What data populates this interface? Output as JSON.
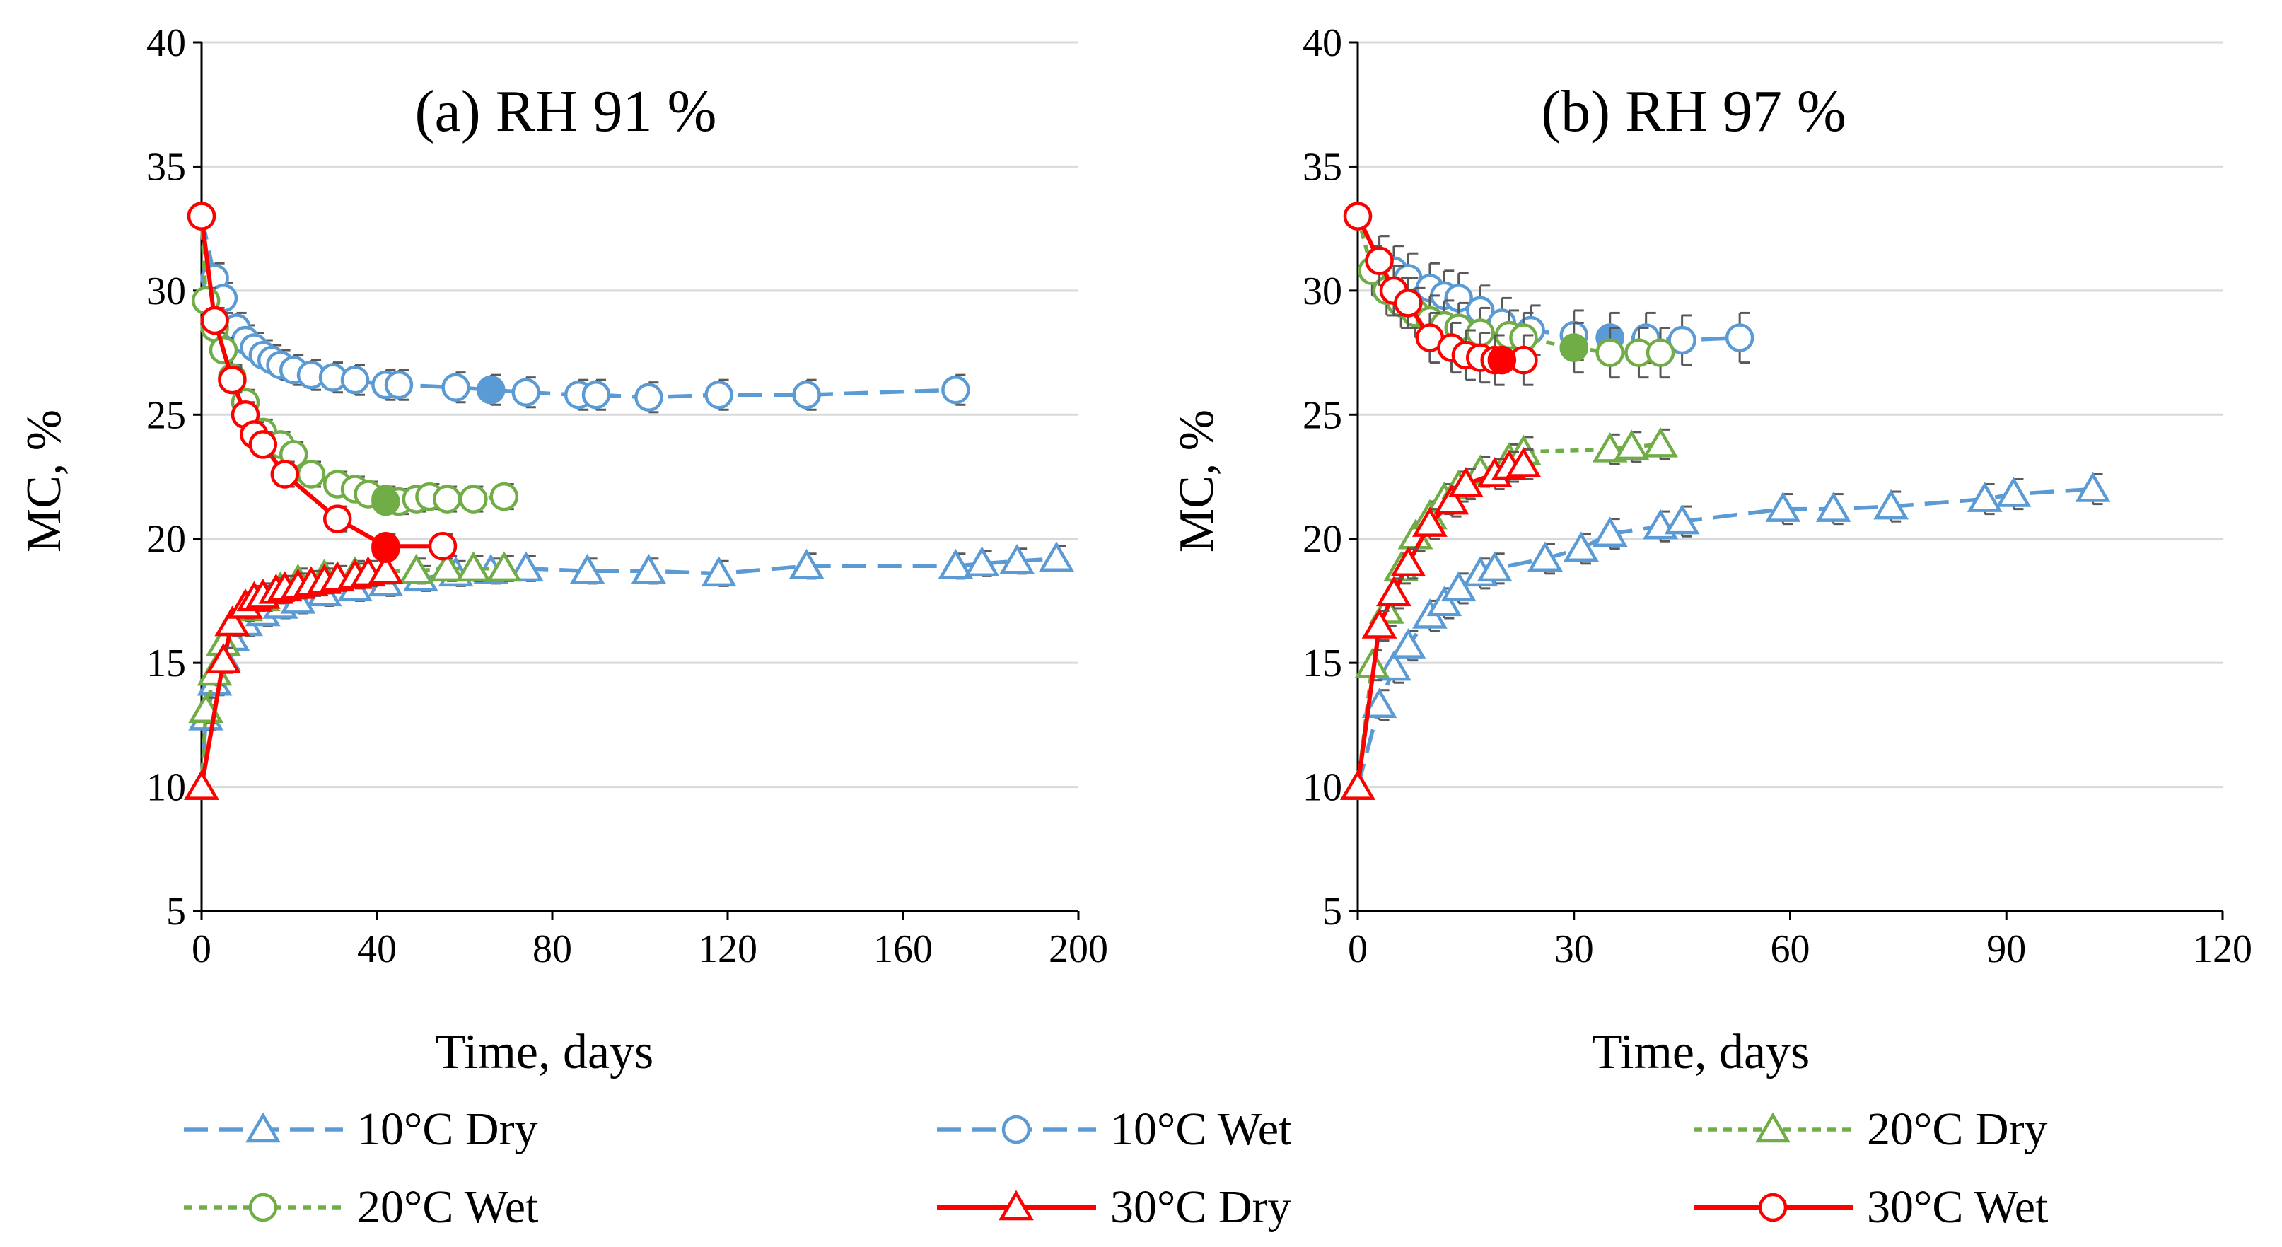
{
  "colors": {
    "blue": "#5B9BD5",
    "green": "#70AD47",
    "red": "#FF0000",
    "grid": "#D9D9D9",
    "errbar": "#595959"
  },
  "legend": [
    {
      "label": "10°C Dry",
      "color": "#5B9BD5",
      "marker": "triangle",
      "dash": "long"
    },
    {
      "label": "10°C Wet",
      "color": "#5B9BD5",
      "marker": "circle",
      "dash": "long"
    },
    {
      "label": "20°C Dry",
      "color": "#70AD47",
      "marker": "triangle",
      "dash": "short"
    },
    {
      "label": "20°C Wet",
      "color": "#70AD47",
      "marker": "circle",
      "dash": "short"
    },
    {
      "label": "30°C Dry",
      "color": "#FF0000",
      "marker": "triangle",
      "dash": "solid"
    },
    {
      "label": "30°C Wet",
      "color": "#FF0000",
      "marker": "circle",
      "dash": "solid"
    }
  ],
  "chart_data": [
    {
      "type": "line",
      "title": "(a) RH 91 %",
      "xlabel": "Time, days",
      "ylabel": "MC, %",
      "xlim": [
        0,
        200
      ],
      "ylim": [
        5,
        40
      ],
      "xticks": [
        0,
        40,
        80,
        120,
        160,
        200
      ],
      "yticks": [
        5,
        10,
        15,
        20,
        25,
        30,
        35,
        40
      ],
      "grid": "horizontal",
      "series": [
        {
          "name": "10°C Dry",
          "x": [
            0,
            1,
            3,
            5,
            7,
            10,
            14,
            18,
            22,
            28,
            35,
            42,
            50,
            58,
            66,
            74,
            88,
            102,
            118,
            138,
            172,
            178,
            186,
            195
          ],
          "y": [
            10,
            12.8,
            14.2,
            15.2,
            16.0,
            16.6,
            17.0,
            17.3,
            17.5,
            17.8,
            18.0,
            18.2,
            18.4,
            18.6,
            18.7,
            18.8,
            18.7,
            18.7,
            18.6,
            18.9,
            18.9,
            19.0,
            19.1,
            19.2
          ],
          "err": 0.5
        },
        {
          "name": "10°C Wet",
          "x": [
            0,
            3,
            5,
            8,
            10,
            12,
            14,
            16,
            18,
            21,
            25,
            30,
            35,
            42,
            45,
            58,
            66,
            74,
            86,
            90,
            102,
            118,
            138,
            172
          ],
          "y": [
            33,
            30.5,
            29.7,
            28.5,
            28.0,
            27.7,
            27.4,
            27.2,
            27.0,
            26.8,
            26.6,
            26.5,
            26.4,
            26.2,
            26.2,
            26.1,
            26.0,
            25.9,
            25.8,
            25.8,
            25.7,
            25.8,
            25.8,
            26.0
          ],
          "err": 0.6,
          "eq": {
            "x": 66,
            "y": 26.0
          }
        },
        {
          "name": "20°C Dry",
          "x": [
            0,
            1,
            3,
            5,
            7,
            10,
            14,
            18,
            22,
            28,
            35,
            42,
            49,
            56,
            62,
            69
          ],
          "y": [
            10,
            13.1,
            14.6,
            15.8,
            16.6,
            17.2,
            17.6,
            18.0,
            18.3,
            18.5,
            18.6,
            18.7,
            18.7,
            18.8,
            18.8,
            18.8
          ],
          "err": 0.5
        },
        {
          "name": "20°C Wet",
          "x": [
            0,
            1,
            3,
            5,
            7,
            10,
            14,
            18,
            21,
            25,
            31,
            35,
            38,
            42,
            45,
            49,
            52,
            56,
            62,
            69
          ],
          "y": [
            33,
            29.6,
            28.5,
            27.6,
            26.5,
            25.5,
            24.3,
            23.8,
            23.4,
            22.6,
            22.2,
            22.0,
            21.8,
            21.6,
            21.5,
            21.6,
            21.7,
            21.6,
            21.6,
            21.7
          ],
          "err": 0.5,
          "eq": {
            "x": 42,
            "y": 21.5
          }
        },
        {
          "name": "30°C Dry",
          "x": [
            0,
            5,
            7,
            10,
            12,
            14,
            17,
            19,
            22,
            25,
            28,
            31,
            35,
            38,
            42
          ],
          "y": [
            10,
            15.1,
            16.6,
            17.3,
            17.6,
            17.7,
            17.9,
            18.0,
            18.1,
            18.2,
            18.3,
            18.4,
            18.5,
            18.6,
            18.7
          ],
          "err": 0.5
        },
        {
          "name": "30°C Wet",
          "x": [
            0,
            3,
            7,
            10,
            12,
            14,
            19,
            31,
            42,
            55
          ],
          "y": [
            33,
            28.8,
            26.4,
            25.0,
            24.2,
            23.8,
            22.6,
            20.8,
            19.7,
            19.7
          ],
          "err": 0.5,
          "eq": {
            "x": 42,
            "y": 19.6
          }
        }
      ]
    },
    {
      "type": "line",
      "title": "(b) RH 97 %",
      "xlabel": "Time, days",
      "ylabel": "MC, %",
      "xlim": [
        0,
        120
      ],
      "ylim": [
        5,
        40
      ],
      "xticks": [
        0,
        30,
        60,
        90,
        120
      ],
      "yticks": [
        5,
        10,
        15,
        20,
        25,
        30,
        35,
        40
      ],
      "grid": "horizontal",
      "series": [
        {
          "name": "10°C Dry",
          "x": [
            0,
            3,
            5,
            7,
            10,
            12,
            14,
            17,
            19,
            26,
            31,
            35,
            42,
            45,
            59,
            66,
            74,
            87,
            91,
            102
          ],
          "y": [
            10,
            13.3,
            14.8,
            15.7,
            16.9,
            17.4,
            18.0,
            18.6,
            18.8,
            19.2,
            19.6,
            20.2,
            20.5,
            20.7,
            21.2,
            21.2,
            21.3,
            21.6,
            21.8,
            22.0
          ],
          "err": 0.6
        },
        {
          "name": "10°C Wet",
          "x": [
            0,
            3,
            5,
            7,
            10,
            12,
            14,
            17,
            20,
            24,
            30,
            35,
            40,
            45,
            53
          ],
          "y": [
            33,
            31.2,
            30.8,
            30.5,
            30.1,
            29.8,
            29.7,
            29.2,
            28.7,
            28.4,
            28.2,
            28.1,
            28.1,
            28.0,
            28.1
          ],
          "err": 1.0,
          "eq": {
            "x": 35,
            "y": 28.1
          }
        },
        {
          "name": "20°C Dry",
          "x": [
            0,
            2,
            4,
            6,
            8,
            10,
            12,
            14,
            17,
            21,
            23,
            35,
            38,
            42
          ],
          "y": [
            10,
            14.9,
            17.1,
            18.8,
            20.1,
            20.9,
            21.6,
            22.1,
            22.7,
            23.2,
            23.5,
            23.6,
            23.7,
            23.8
          ],
          "err": 0.6
        },
        {
          "name": "20°C Wet",
          "x": [
            0,
            2,
            4,
            6,
            8,
            10,
            12,
            14,
            17,
            21,
            23,
            30,
            35,
            39,
            42
          ],
          "y": [
            33,
            30.8,
            30.0,
            29.5,
            29.1,
            28.8,
            28.6,
            28.5,
            28.3,
            28.2,
            28.1,
            27.7,
            27.5,
            27.5,
            27.5
          ],
          "err": 1.0,
          "eq": {
            "x": 30,
            "y": 27.7
          }
        },
        {
          "name": "30°C Dry",
          "x": [
            0,
            3,
            5,
            7,
            10,
            13,
            15,
            19,
            21,
            23
          ],
          "y": [
            10,
            16.5,
            17.8,
            19.0,
            20.6,
            21.5,
            22.2,
            22.6,
            22.9,
            23.0
          ],
          "err": 0.6
        },
        {
          "name": "30°C Wet",
          "x": [
            0,
            3,
            5,
            7,
            10,
            13,
            15,
            17,
            19,
            23
          ],
          "y": [
            33,
            31.2,
            30.0,
            29.5,
            28.1,
            27.7,
            27.4,
            27.3,
            27.2,
            27.2
          ],
          "err": 1.0,
          "eq": {
            "x": 20,
            "y": 27.2
          }
        }
      ]
    }
  ]
}
